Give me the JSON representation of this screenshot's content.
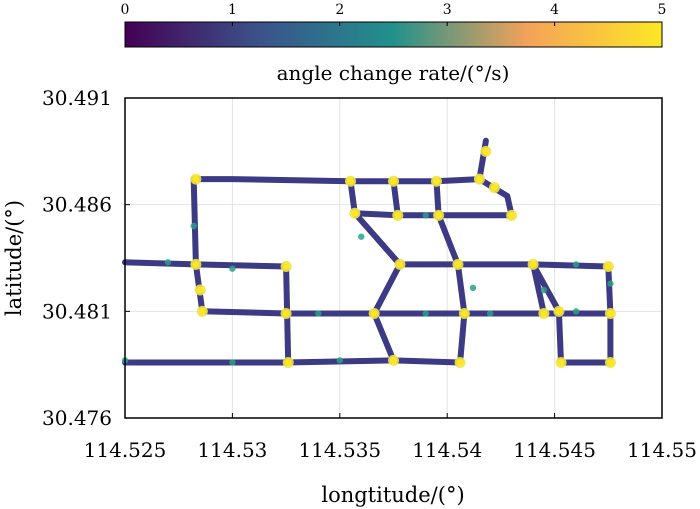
{
  "chart_data": {
    "type": "scatter",
    "title": "",
    "xlabel": "longtitude/(°)",
    "ylabel": "latitude/(°)",
    "xlim": [
      114.525,
      114.55
    ],
    "ylim": [
      30.476,
      30.491
    ],
    "xticks": [
      "114.525",
      "114.53",
      "114.535",
      "114.54",
      "114.545",
      "114.55"
    ],
    "yticks": [
      "30.476",
      "30.481",
      "30.486",
      "30.491"
    ],
    "grid": true,
    "colorbar": {
      "label": "angle change rate/(°/s)",
      "range": [
        0,
        5
      ],
      "ticks": [
        "0",
        "1",
        "2",
        "3",
        "4",
        "5"
      ],
      "colormap": [
        "#440154",
        "#3b528b",
        "#21918c",
        "#5ec962",
        "#fde725"
      ],
      "placement": "top"
    },
    "tracks": [
      [
        [
          114.525,
          30.4833
        ],
        [
          114.5283,
          30.4832
        ],
        [
          114.5325,
          30.4831
        ]
      ],
      [
        [
          114.5325,
          30.4831
        ],
        [
          114.5326,
          30.4786
        ]
      ],
      [
        [
          114.525,
          30.4786
        ],
        [
          114.5325,
          30.4786
        ],
        [
          114.5375,
          30.4787
        ],
        [
          114.5406,
          30.4786
        ]
      ],
      [
        [
          114.5283,
          30.4832
        ],
        [
          114.5286,
          30.481
        ],
        [
          114.5325,
          30.4809
        ],
        [
          114.5377,
          30.4809
        ],
        [
          114.5408,
          30.4809
        ],
        [
          114.5445,
          30.4809
        ],
        [
          114.5476,
          30.4809
        ]
      ],
      [
        [
          114.5283,
          30.4832
        ],
        [
          114.5282,
          30.4872
        ],
        [
          114.53,
          30.4872
        ],
        [
          114.5355,
          30.4871
        ],
        [
          114.5375,
          30.4871
        ],
        [
          114.5395,
          30.4871
        ],
        [
          114.5415,
          30.4872
        ]
      ],
      [
        [
          114.5415,
          30.4872
        ],
        [
          114.5418,
          30.489
        ]
      ],
      [
        [
          114.5415,
          30.4872
        ],
        [
          114.5428,
          30.4864
        ],
        [
          114.543,
          30.4855
        ]
      ],
      [
        [
          114.5355,
          30.4871
        ],
        [
          114.5357,
          30.4856
        ],
        [
          114.5378,
          30.4832
        ],
        [
          114.5366,
          30.4809
        ],
        [
          114.5375,
          30.4787
        ]
      ],
      [
        [
          114.5357,
          30.4856
        ],
        [
          114.5377,
          30.4855
        ],
        [
          114.5396,
          30.4855
        ],
        [
          114.543,
          30.4855
        ]
      ],
      [
        [
          114.5375,
          30.4871
        ],
        [
          114.5377,
          30.4855
        ]
      ],
      [
        [
          114.5395,
          30.4871
        ],
        [
          114.5396,
          30.4855
        ],
        [
          114.5405,
          30.4832
        ],
        [
          114.5408,
          30.4809
        ],
        [
          114.5406,
          30.4786
        ]
      ],
      [
        [
          114.5378,
          30.4832
        ],
        [
          114.5405,
          30.4832
        ],
        [
          114.544,
          30.4832
        ],
        [
          114.5475,
          30.4831
        ],
        [
          114.5476,
          30.4809
        ],
        [
          114.5476,
          30.4786
        ]
      ],
      [
        [
          114.544,
          30.4832
        ],
        [
          114.5452,
          30.481
        ],
        [
          114.5453,
          30.4786
        ],
        [
          114.5476,
          30.4786
        ]
      ],
      [
        [
          114.544,
          30.4832
        ],
        [
          114.5445,
          30.4809
        ]
      ]
    ],
    "high_rate_points": [
      [
        114.5283,
        30.4872
      ],
      [
        114.5283,
        30.4832
      ],
      [
        114.5285,
        30.482
      ],
      [
        114.5286,
        30.481
      ],
      [
        114.5325,
        30.4831
      ],
      [
        114.5325,
        30.4809
      ],
      [
        114.5326,
        30.4786
      ],
      [
        114.5355,
        30.4871
      ],
      [
        114.5357,
        30.4856
      ],
      [
        114.5375,
        30.4871
      ],
      [
        114.5377,
        30.4855
      ],
      [
        114.5395,
        30.4871
      ],
      [
        114.5396,
        30.4855
      ],
      [
        114.5415,
        30.4872
      ],
      [
        114.5418,
        30.4885
      ],
      [
        114.5422,
        30.4868
      ],
      [
        114.543,
        30.4855
      ],
      [
        114.5378,
        30.4832
      ],
      [
        114.5405,
        30.4832
      ],
      [
        114.544,
        30.4832
      ],
      [
        114.5475,
        30.4831
      ],
      [
        114.5366,
        30.4809
      ],
      [
        114.5408,
        30.4809
      ],
      [
        114.5445,
        30.4809
      ],
      [
        114.5452,
        30.481
      ],
      [
        114.5476,
        30.4809
      ],
      [
        114.5375,
        30.4787
      ],
      [
        114.5406,
        30.4786
      ],
      [
        114.5453,
        30.4786
      ],
      [
        114.5476,
        30.4786
      ]
    ],
    "mid_rate_points": [
      [
        114.527,
        30.4833
      ],
      [
        114.53,
        30.483
      ],
      [
        114.534,
        30.4809
      ],
      [
        114.535,
        30.4787
      ],
      [
        114.539,
        30.4809
      ],
      [
        114.542,
        30.4809
      ],
      [
        114.546,
        30.4832
      ],
      [
        114.5476,
        30.4823
      ],
      [
        114.536,
        30.4845
      ],
      [
        114.5412,
        30.4821
      ],
      [
        114.539,
        30.4855
      ],
      [
        114.525,
        30.4787
      ],
      [
        114.53,
        30.4786
      ],
      [
        114.5282,
        30.485
      ],
      [
        114.546,
        30.481
      ],
      [
        114.5445,
        30.482
      ]
    ]
  }
}
